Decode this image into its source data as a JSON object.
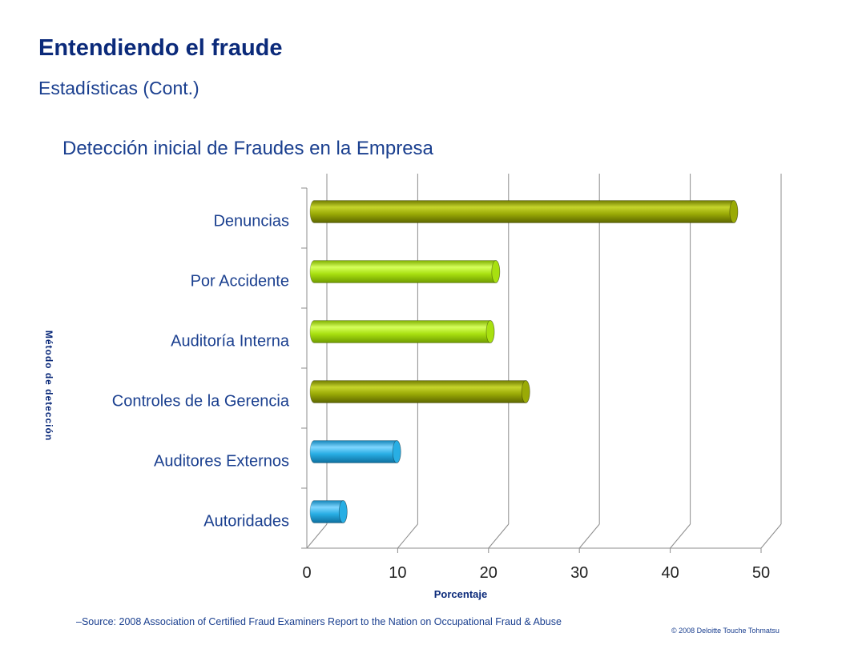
{
  "slide": {
    "title": "Entendiendo el fraude",
    "subtitle": "Estadísticas (Cont.)",
    "source": "–Source:  2008 Association of Certified Fraud Examiners Report to the Nation on Occupational Fraud & Abuse",
    "copyright": "© 2008 Deloitte Touche Tohmatsu"
  },
  "chart_data": {
    "type": "bar",
    "orientation": "horizontal",
    "title": "Detección inicial de Fraudes en la Empresa",
    "xlabel": "Porcentaje",
    "ylabel": "Método de detección",
    "categories": [
      "Denuncias",
      "Por Accidente",
      "Auditoría Interna",
      "Controles de la Gerencia",
      "Auditores Externos",
      "Autoridades"
    ],
    "values": [
      46.2,
      20.0,
      19.4,
      23.3,
      9.1,
      3.2
    ],
    "xlim": [
      0,
      50
    ],
    "xticks": [
      "0",
      "10",
      "20",
      "30",
      "40",
      "50"
    ],
    "grid": true,
    "legend": "none",
    "colors": {
      "olive": "#9aaa06",
      "lime": "#a8e010",
      "blue": "#28aee4",
      "text": "#1a3f8f",
      "axis_title": "#0b2a7a",
      "grid": "#8c8c8c"
    },
    "bar_colors": [
      "olive",
      "lime",
      "lime",
      "olive",
      "blue",
      "blue"
    ]
  }
}
